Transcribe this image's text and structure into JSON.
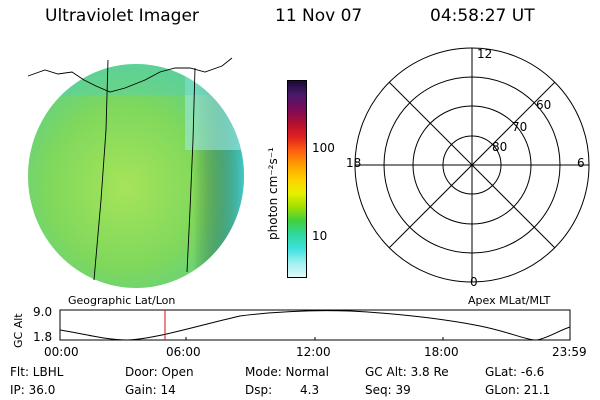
{
  "header": {
    "instrument": "Ultraviolet Imager",
    "date": "11 Nov 07",
    "time": "04:58:27 UT"
  },
  "colorbar": {
    "title": "photon cm⁻²s⁻¹",
    "ticks": [
      "100",
      "10"
    ],
    "colors": [
      "#1a0a3a",
      "#4a1a6a",
      "#7a0a5a",
      "#b01030",
      "#e02020",
      "#ff6010",
      "#ffa000",
      "#ffd000",
      "#e8f000",
      "#a0e000",
      "#40d040",
      "#30d8a0",
      "#40e0e0",
      "#a0f0f0",
      "#e0f8f8"
    ]
  },
  "image_panel": {
    "label": "Geographic Lat/Lon",
    "fill_color": "#8be05a"
  },
  "polar_panel": {
    "label": "Apex MLat/MLT",
    "mlt_labels": {
      "top": "12",
      "left": "18",
      "right": "6",
      "bottom": "0"
    },
    "lat_labels": [
      "60",
      "70",
      "80"
    ]
  },
  "alt_plot": {
    "ylabel": "GC Alt",
    "yticks": [
      "9.0",
      "1.8"
    ],
    "xticks": [
      "00:00",
      "06:00",
      "12:00",
      "18:00",
      "23:59"
    ],
    "marker_color": "#d01010"
  },
  "footer": {
    "row1": [
      "Flt: LBHL",
      "Door: Open",
      "Mode: Normal",
      "GC Alt: 3.8 Re",
      "GLat: -6.6"
    ],
    "row2": [
      "IP: 36.0",
      "Gain: 14",
      "Dsp:",
      "4.3",
      "Seq: 39",
      "GLon: 21.1"
    ]
  }
}
